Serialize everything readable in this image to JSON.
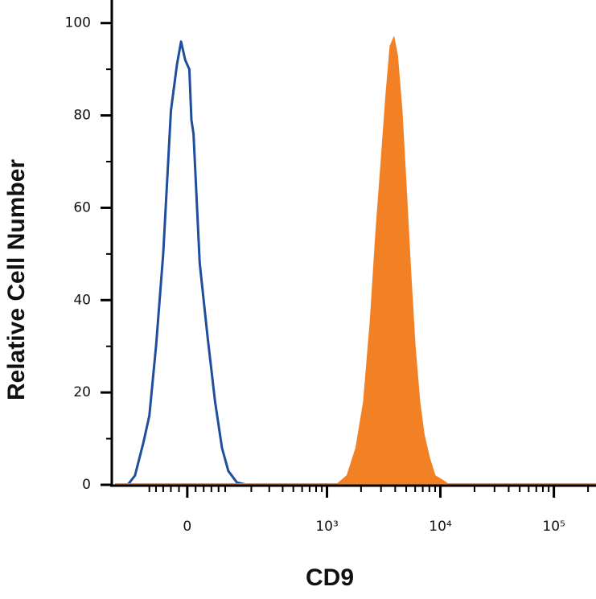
{
  "chart_data": {
    "type": "area",
    "xlabel": "CD9",
    "ylabel": "Relative Cell Number",
    "xscale": "biexponential",
    "xlim": [
      -260,
      235000
    ],
    "xticks": [
      0,
      {
        "value": 1000,
        "label": "10³"
      },
      {
        "value": 10000,
        "label": "10⁴"
      },
      {
        "value": 100000,
        "label": "10⁵"
      }
    ],
    "xminorticks": [
      -100,
      -80,
      -60,
      -40,
      -20,
      20,
      40,
      60,
      80,
      100,
      200,
      300,
      400,
      500,
      600,
      700,
      800,
      900,
      2000,
      3000,
      4000,
      5000,
      6000,
      7000,
      8000,
      9000,
      20000,
      30000,
      40000,
      50000,
      60000,
      70000,
      80000,
      90000,
      200000
    ],
    "ylim": [
      0,
      105
    ],
    "yticks": [
      0,
      20,
      40,
      60,
      80,
      100
    ],
    "yminorticks": [
      10,
      30,
      50,
      70,
      90
    ],
    "series": [
      {
        "color": "#1f4e9c",
        "fill": false,
        "x": [
          -180,
          -150,
          -120,
          -100,
          -80,
          -60,
          -40,
          -25,
          -15,
          -5,
          5,
          10,
          15,
          30,
          50,
          70,
          90,
          110,
          140,
          180
        ],
        "values": [
          0,
          2,
          9,
          15,
          30,
          50,
          81,
          91,
          96,
          92,
          90,
          79,
          76,
          48,
          32,
          18,
          8,
          3,
          0.5,
          0
        ]
      },
      {
        "color": "#f28024",
        "fill": true,
        "x": [
          1200,
          1500,
          1800,
          2100,
          2400,
          2700,
          3000,
          3300,
          3600,
          3900,
          4200,
          4600,
          5000,
          5500,
          6000,
          6600,
          7200,
          8000,
          9000,
          10500,
          12000
        ],
        "values": [
          0,
          2,
          8,
          18,
          35,
          55,
          70,
          84,
          95,
          97,
          93,
          81,
          65,
          46,
          30,
          18,
          11,
          6,
          2,
          1,
          0
        ]
      }
    ]
  }
}
